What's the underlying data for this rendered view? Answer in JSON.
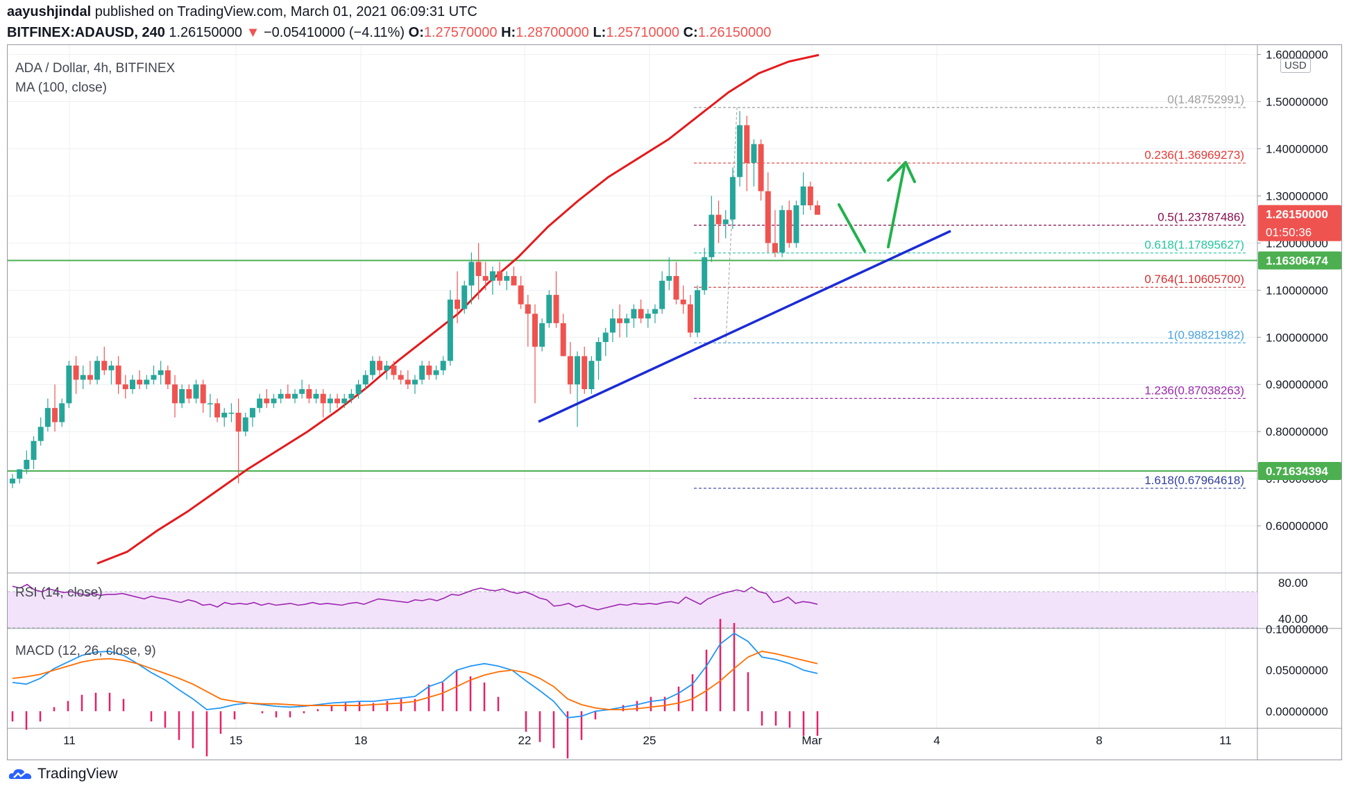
{
  "header": {
    "author": "aayushjindal",
    "published_text": "published on TradingView.com, March 01, 2021 06:09:31 UTC",
    "symbol": "BITFINEX:ADAUSD, 240",
    "last": "1.26150000",
    "change_arrow": "▼",
    "change": "−0.05410000 (−4.11%)",
    "o_label": "O:",
    "o_value": "1.27570000",
    "h_label": "H:",
    "h_value": "1.28700000",
    "l_label": "L:",
    "l_value": "1.25710000",
    "c_label": "C:",
    "c_value": "1.26150000"
  },
  "pane": {
    "title": "ADA / Dollar, 4h, BITFINEX",
    "ma_label": "MA (100, close)",
    "currency_button": "USD",
    "rsi_label": "RSI (14, close)",
    "macd_label": "MACD (12, 26, close, 9)"
  },
  "footer": {
    "brand": "TradingView",
    "icon": "tradingview-cloud-icon"
  },
  "colors": {
    "bull": "#26a69a",
    "bear": "#ef5350",
    "ma": "#e31a1c",
    "trendline": "#1a2bd6",
    "support": "#4caf50",
    "arrow": "#22b14c",
    "rsi": "#9c27b0",
    "macd": "#2196f3",
    "signal": "#ff6d00",
    "hist": "#e91e63"
  },
  "chart_data": {
    "type": "candlestick",
    "symbol": "BITFINEX:ADAUSD",
    "interval": "240",
    "ylim": [
      0.5,
      1.62
    ],
    "y_ticks": [
      "0.60000000",
      "0.70000000",
      "0.80000000",
      "0.90000000",
      "1.00000000",
      "1.10000000",
      "1.20000000",
      "1.30000000",
      "1.40000000",
      "1.50000000",
      "1.60000000"
    ],
    "x_ticks": [
      "11",
      "15",
      "18",
      "22",
      "25",
      "Mar",
      "4",
      "8",
      "11"
    ],
    "price_labels": [
      {
        "value": 1.2615,
        "text": "1.26150000",
        "sub": "01:50:36",
        "color": "#ef5350"
      },
      {
        "value": 1.16306474,
        "text": "1.16306474",
        "color": "#4caf50"
      },
      {
        "value": 0.71634394,
        "text": "0.71634394",
        "color": "#4caf50"
      }
    ],
    "support_lines": [
      1.16306474,
      0.71634394
    ],
    "fibonacci": [
      {
        "ratio": "0",
        "value": 1.48752991,
        "label": "0(1.48752991)",
        "color": "#9e9e9e"
      },
      {
        "ratio": "0.236",
        "value": 1.36969273,
        "label": "0.236(1.36969273)",
        "color": "#e53935"
      },
      {
        "ratio": "0.5",
        "value": 1.23787486,
        "label": "0.5(1.23787486)",
        "color": "#880e4f"
      },
      {
        "ratio": "0.618",
        "value": 1.17895627,
        "label": "0.618(1.17895627)",
        "color": "#26c6a0"
      },
      {
        "ratio": "0.764",
        "value": 1.106057,
        "label": "0.764(1.10605700)",
        "color": "#d32f2f"
      },
      {
        "ratio": "1",
        "value": 0.98821982,
        "label": "1(0.98821982)",
        "color": "#4ba3e3"
      },
      {
        "ratio": "1.236",
        "value": 0.87038263,
        "label": "1.236(0.87038263)",
        "color": "#9c27b0"
      },
      {
        "ratio": "1.618",
        "value": 0.67964618,
        "label": "1.618(0.67964618)",
        "color": "#303f9f"
      }
    ],
    "candles_ohlc": [
      [
        0.69,
        0.71,
        0.68,
        0.7
      ],
      [
        0.7,
        0.72,
        0.69,
        0.72
      ],
      [
        0.72,
        0.76,
        0.71,
        0.74
      ],
      [
        0.74,
        0.79,
        0.72,
        0.78
      ],
      [
        0.78,
        0.83,
        0.77,
        0.81
      ],
      [
        0.81,
        0.87,
        0.8,
        0.85
      ],
      [
        0.85,
        0.9,
        0.8,
        0.82
      ],
      [
        0.82,
        0.87,
        0.81,
        0.86
      ],
      [
        0.86,
        0.95,
        0.85,
        0.94
      ],
      [
        0.94,
        0.96,
        0.88,
        0.91
      ],
      [
        0.91,
        0.94,
        0.89,
        0.92
      ],
      [
        0.92,
        0.95,
        0.9,
        0.91
      ],
      [
        0.91,
        0.96,
        0.9,
        0.95
      ],
      [
        0.95,
        0.98,
        0.92,
        0.93
      ],
      [
        0.93,
        0.95,
        0.9,
        0.94
      ],
      [
        0.94,
        0.96,
        0.88,
        0.9
      ],
      [
        0.9,
        0.92,
        0.87,
        0.89
      ],
      [
        0.89,
        0.92,
        0.88,
        0.91
      ],
      [
        0.91,
        0.93,
        0.89,
        0.9
      ],
      [
        0.9,
        0.92,
        0.89,
        0.91
      ],
      [
        0.91,
        0.94,
        0.9,
        0.92
      ],
      [
        0.92,
        0.95,
        0.9,
        0.93
      ],
      [
        0.93,
        0.94,
        0.89,
        0.9
      ],
      [
        0.9,
        0.92,
        0.83,
        0.86
      ],
      [
        0.86,
        0.9,
        0.85,
        0.89
      ],
      [
        0.89,
        0.9,
        0.86,
        0.87
      ],
      [
        0.87,
        0.91,
        0.86,
        0.9
      ],
      [
        0.9,
        0.91,
        0.84,
        0.86
      ],
      [
        0.86,
        0.88,
        0.83,
        0.86
      ],
      [
        0.86,
        0.87,
        0.82,
        0.83
      ],
      [
        0.83,
        0.85,
        0.81,
        0.84
      ],
      [
        0.84,
        0.86,
        0.82,
        0.84
      ],
      [
        0.84,
        0.87,
        0.69,
        0.8
      ],
      [
        0.8,
        0.84,
        0.79,
        0.83
      ],
      [
        0.83,
        0.85,
        0.81,
        0.85
      ],
      [
        0.85,
        0.88,
        0.84,
        0.87
      ],
      [
        0.87,
        0.89,
        0.85,
        0.86
      ],
      [
        0.86,
        0.88,
        0.85,
        0.87
      ],
      [
        0.87,
        0.89,
        0.86,
        0.88
      ],
      [
        0.88,
        0.9,
        0.87,
        0.87
      ],
      [
        0.87,
        0.89,
        0.86,
        0.88
      ],
      [
        0.88,
        0.91,
        0.87,
        0.89
      ],
      [
        0.89,
        0.9,
        0.86,
        0.87
      ],
      [
        0.87,
        0.89,
        0.86,
        0.88
      ],
      [
        0.88,
        0.89,
        0.83,
        0.86
      ],
      [
        0.86,
        0.88,
        0.84,
        0.87
      ],
      [
        0.87,
        0.88,
        0.85,
        0.86
      ],
      [
        0.86,
        0.88,
        0.85,
        0.87
      ],
      [
        0.87,
        0.89,
        0.86,
        0.88
      ],
      [
        0.88,
        0.91,
        0.87,
        0.9
      ],
      [
        0.9,
        0.93,
        0.89,
        0.92
      ],
      [
        0.92,
        0.96,
        0.91,
        0.95
      ],
      [
        0.95,
        0.96,
        0.92,
        0.93
      ],
      [
        0.93,
        0.95,
        0.91,
        0.94
      ],
      [
        0.94,
        0.95,
        0.91,
        0.92
      ],
      [
        0.92,
        0.93,
        0.9,
        0.91
      ],
      [
        0.91,
        0.93,
        0.89,
        0.9
      ],
      [
        0.9,
        0.92,
        0.88,
        0.91
      ],
      [
        0.91,
        0.95,
        0.9,
        0.94
      ],
      [
        0.94,
        0.95,
        0.91,
        0.92
      ],
      [
        0.92,
        0.94,
        0.91,
        0.93
      ],
      [
        0.93,
        0.96,
        0.92,
        0.95
      ],
      [
        0.95,
        1.1,
        0.94,
        1.08
      ],
      [
        1.08,
        1.14,
        1.03,
        1.06
      ],
      [
        1.06,
        1.12,
        1.05,
        1.11
      ],
      [
        1.11,
        1.18,
        1.07,
        1.16
      ],
      [
        1.16,
        1.2,
        1.08,
        1.13
      ],
      [
        1.13,
        1.16,
        1.1,
        1.12
      ],
      [
        1.12,
        1.15,
        1.09,
        1.14
      ],
      [
        1.14,
        1.16,
        1.11,
        1.12
      ],
      [
        1.12,
        1.14,
        1.1,
        1.13
      ],
      [
        1.13,
        1.15,
        1.11,
        1.11
      ],
      [
        1.11,
        1.13,
        1.06,
        1.07
      ],
      [
        1.07,
        1.09,
        0.98,
        1.05
      ],
      [
        1.05,
        1.07,
        0.86,
        0.98
      ],
      [
        0.98,
        1.04,
        0.97,
        1.03
      ],
      [
        1.03,
        1.1,
        1.02,
        1.09
      ],
      [
        1.09,
        1.14,
        1.02,
        1.03
      ],
      [
        1.03,
        1.05,
        0.96,
        0.96
      ],
      [
        0.96,
        0.99,
        0.88,
        0.9
      ],
      [
        0.9,
        0.97,
        0.81,
        0.96
      ],
      [
        0.96,
        0.98,
        0.88,
        0.89
      ],
      [
        0.89,
        0.96,
        0.88,
        0.95
      ],
      [
        0.95,
        1.0,
        0.91,
        0.99
      ],
      [
        0.99,
        1.02,
        0.96,
        1.01
      ],
      [
        1.01,
        1.06,
        0.99,
        1.04
      ],
      [
        1.04,
        1.07,
        1.0,
        1.03
      ],
      [
        1.03,
        1.05,
        1.0,
        1.04
      ],
      [
        1.04,
        1.07,
        1.02,
        1.06
      ],
      [
        1.06,
        1.08,
        1.03,
        1.04
      ],
      [
        1.04,
        1.06,
        1.02,
        1.05
      ],
      [
        1.05,
        1.07,
        1.03,
        1.06
      ],
      [
        1.06,
        1.14,
        1.05,
        1.12
      ],
      [
        1.12,
        1.17,
        1.1,
        1.13
      ],
      [
        1.13,
        1.16,
        1.07,
        1.08
      ],
      [
        1.08,
        1.11,
        1.05,
        1.07
      ],
      [
        1.07,
        1.09,
        1.0,
        1.01
      ],
      [
        1.01,
        1.11,
        1.0,
        1.1
      ],
      [
        1.1,
        1.19,
        1.09,
        1.17
      ],
      [
        1.17,
        1.3,
        1.16,
        1.26
      ],
      [
        1.26,
        1.29,
        1.2,
        1.24
      ],
      [
        1.24,
        1.27,
        1.21,
        1.25
      ],
      [
        1.25,
        1.36,
        1.23,
        1.34
      ],
      [
        1.34,
        1.48,
        1.32,
        1.45
      ],
      [
        1.45,
        1.47,
        1.31,
        1.37
      ],
      [
        1.37,
        1.42,
        1.32,
        1.41
      ],
      [
        1.41,
        1.42,
        1.29,
        1.31
      ],
      [
        1.31,
        1.35,
        1.18,
        1.2
      ],
      [
        1.2,
        1.27,
        1.17,
        1.18
      ],
      [
        1.18,
        1.28,
        1.17,
        1.27
      ],
      [
        1.27,
        1.29,
        1.19,
        1.2
      ],
      [
        1.2,
        1.29,
        1.19,
        1.28
      ],
      [
        1.28,
        1.35,
        1.26,
        1.32
      ],
      [
        1.32,
        1.33,
        1.27,
        1.28
      ],
      [
        1.28,
        1.29,
        1.26,
        1.26
      ]
    ],
    "ma100": [
      [
        0.524,
        0.52
      ],
      [
        0.556,
        0.545
      ],
      [
        0.61,
        0.59
      ],
      [
        0.66,
        0.63
      ],
      [
        0.72,
        0.675
      ],
      [
        0.78,
        0.72
      ],
      [
        0.84,
        0.76
      ],
      [
        0.9,
        0.8
      ],
      [
        0.96,
        0.845
      ],
      [
        1.02,
        0.895
      ],
      [
        1.08,
        0.95
      ],
      [
        1.14,
        1.0
      ],
      [
        1.19,
        1.05
      ],
      [
        1.25,
        1.115
      ],
      [
        1.29,
        1.17
      ],
      [
        1.33,
        1.235
      ],
      [
        1.37,
        1.29
      ],
      [
        1.4,
        1.34
      ],
      [
        1.43,
        1.38
      ],
      [
        1.46,
        1.42
      ],
      [
        1.5,
        1.47
      ],
      [
        1.53,
        1.52
      ],
      [
        1.56,
        1.56
      ],
      [
        1.59,
        1.585
      ],
      [
        1.617,
        1.599
      ]
    ],
    "rsi_ylim": [
      30,
      90
    ],
    "rsi_ticks": [
      "80.00",
      "40.00"
    ],
    "rsi_band": [
      70,
      30
    ],
    "rsi_values": [
      76,
      74,
      78,
      72,
      70,
      73,
      71,
      69,
      70,
      68,
      66,
      68,
      66,
      67,
      67,
      68,
      66,
      64,
      62,
      65,
      63,
      62,
      60,
      58,
      61,
      59,
      55,
      56,
      53,
      58,
      56,
      57,
      56,
      58,
      55,
      57,
      55,
      56,
      57,
      55,
      56,
      58,
      56,
      57,
      56,
      55,
      57,
      58,
      56,
      59,
      62,
      61,
      60,
      59,
      58,
      61,
      60,
      62,
      60,
      63,
      67,
      66,
      69,
      72,
      74,
      72,
      71,
      73,
      70,
      68,
      70,
      67,
      63,
      61,
      54,
      55,
      57,
      53,
      55,
      52,
      50,
      52,
      54,
      56,
      55,
      57,
      56,
      57,
      56,
      58,
      59,
      57,
      64,
      60,
      56,
      62,
      65,
      68,
      70,
      72,
      70,
      75,
      70,
      68,
      58,
      60,
      64,
      57,
      59,
      58,
      56
    ],
    "macd_ylim": [
      -0.02,
      0.1
    ],
    "macd_ticks": [
      "0.10000000",
      "0.05000000",
      "0.00000000"
    ],
    "macd_line": [
      0.035,
      0.033,
      0.04,
      0.052,
      0.06,
      0.068,
      0.072,
      0.073,
      0.068,
      0.058,
      0.047,
      0.038,
      0.026,
      0.015,
      0.002,
      0.004,
      0.008,
      0.01,
      0.008,
      0.006,
      0.005,
      0.006,
      0.008,
      0.01,
      0.011,
      0.012,
      0.012,
      0.014,
      0.016,
      0.018,
      0.03,
      0.036,
      0.05,
      0.055,
      0.058,
      0.055,
      0.05,
      0.037,
      0.025,
      0.012,
      -0.008,
      -0.006,
      0.0,
      0.002,
      0.005,
      0.008,
      0.012,
      0.014,
      0.022,
      0.033,
      0.055,
      0.082,
      0.095,
      0.085,
      0.066,
      0.063,
      0.058,
      0.05,
      0.046
    ],
    "signal_line": [
      0.04,
      0.042,
      0.045,
      0.05,
      0.055,
      0.06,
      0.063,
      0.064,
      0.062,
      0.058,
      0.052,
      0.046,
      0.04,
      0.033,
      0.024,
      0.015,
      0.012,
      0.01,
      0.009,
      0.009,
      0.008,
      0.007,
      0.007,
      0.007,
      0.007,
      0.007,
      0.008,
      0.009,
      0.01,
      0.012,
      0.017,
      0.022,
      0.03,
      0.038,
      0.044,
      0.048,
      0.05,
      0.047,
      0.04,
      0.03,
      0.015,
      0.008,
      0.004,
      0.002,
      0.002,
      0.003,
      0.005,
      0.007,
      0.01,
      0.015,
      0.025,
      0.037,
      0.052,
      0.066,
      0.073,
      0.07,
      0.066,
      0.062,
      0.058
    ]
  }
}
